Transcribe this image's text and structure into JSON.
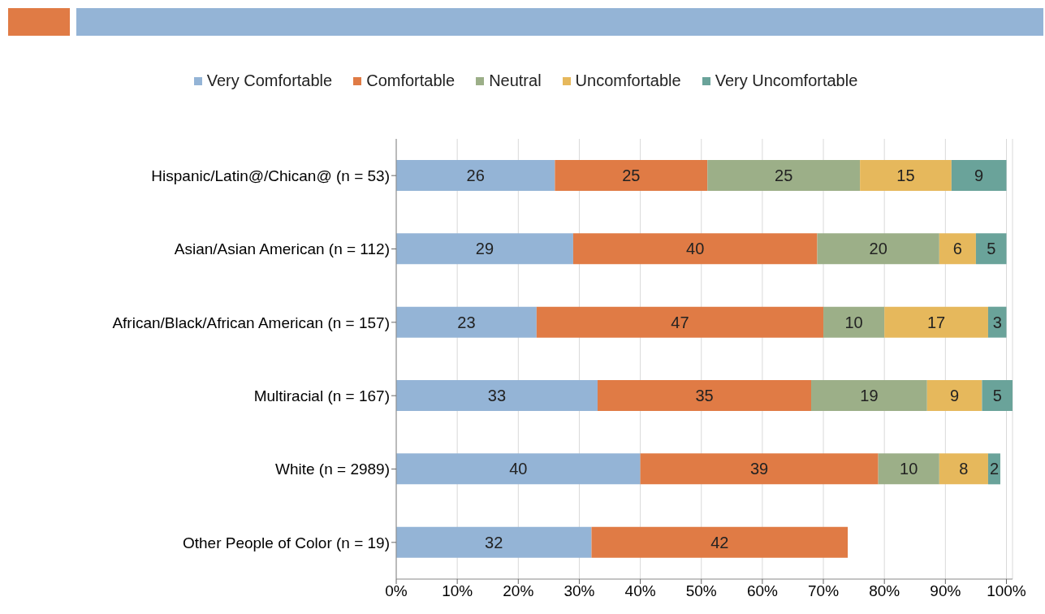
{
  "chart_data": {
    "type": "bar",
    "orientation": "horizontal",
    "stacked": true,
    "data_labels": true,
    "legend": "top",
    "grid": "x",
    "categories": [
      "Hispanic/Latin@/Chican@ (n = 53)",
      "Asian/Asian American (n = 112)",
      "African/Black/African American (n = 157)",
      "Multiracial (n = 167)",
      "White (n = 2989)",
      "Other People of Color (n = 19)"
    ],
    "xlim": [
      0,
      101
    ],
    "xticks": [
      {
        "value": 0,
        "label": "0%"
      },
      {
        "value": 10,
        "label": "10%"
      },
      {
        "value": 20,
        "label": "20%"
      },
      {
        "value": 30,
        "label": "30%"
      },
      {
        "value": 40,
        "label": "40%"
      },
      {
        "value": 50,
        "label": "50%"
      },
      {
        "value": 60,
        "label": "60%"
      },
      {
        "value": 70,
        "label": "70%"
      },
      {
        "value": 80,
        "label": "80%"
      },
      {
        "value": 90,
        "label": "90%"
      },
      {
        "value": 100,
        "label": "100%"
      }
    ],
    "series": [
      {
        "name": "Very Comfortable",
        "color": "#94b4d6",
        "values": [
          26,
          29,
          23,
          33,
          40,
          32
        ]
      },
      {
        "name": "Comfortable",
        "color": "#e07b45",
        "values": [
          25,
          40,
          47,
          35,
          39,
          42
        ]
      },
      {
        "name": "Neutral",
        "color": "#9caf88",
        "values": [
          25,
          20,
          10,
          19,
          10,
          null
        ]
      },
      {
        "name": "Uncomfortable",
        "color": "#e6b85c",
        "values": [
          15,
          6,
          17,
          9,
          8,
          null
        ]
      },
      {
        "name": "Very Uncomfortable",
        "color": "#6aa39a",
        "values": [
          9,
          5,
          3,
          5,
          2,
          null
        ]
      }
    ]
  }
}
